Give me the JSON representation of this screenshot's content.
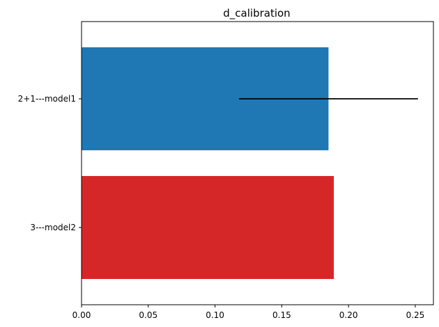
{
  "chart_data": {
    "type": "bar",
    "orientation": "horizontal",
    "title": "d_calibration",
    "xlabel": "",
    "ylabel": "",
    "categories": [
      "2+1---model1",
      "3---model2"
    ],
    "values": [
      0.185,
      0.189
    ],
    "error_bars": [
      {
        "category": "2+1---model1",
        "low": 0.118,
        "high": 0.252
      },
      null
    ],
    "colors": [
      "#1f77b4",
      "#d62728"
    ],
    "error_color": "#000000",
    "xlim": [
      0,
      0.2636
    ],
    "xticks": [
      0.0,
      0.05,
      0.1,
      0.15,
      0.2,
      0.25
    ],
    "xtick_labels": [
      "0.00",
      "0.05",
      "0.10",
      "0.15",
      "0.20",
      "0.25"
    ],
    "grid": false
  }
}
